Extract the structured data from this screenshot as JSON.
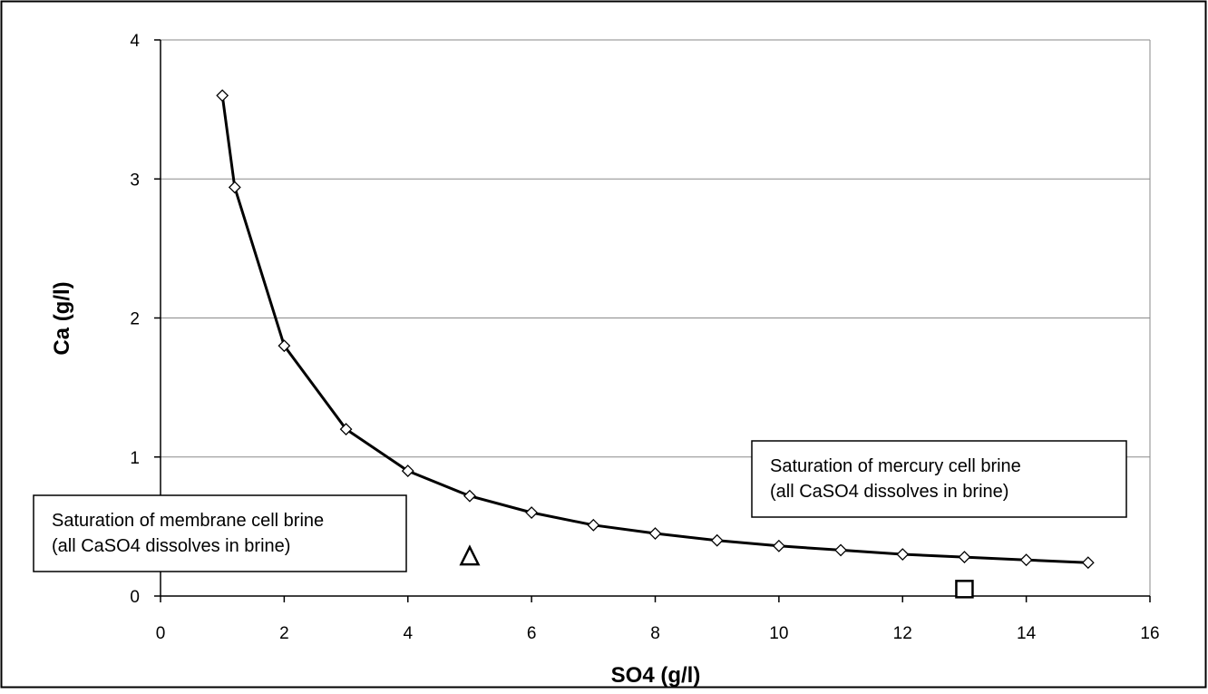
{
  "chart_data": {
    "type": "line",
    "xlabel": "SO4 (g/l)",
    "ylabel": "Ca (g/l)",
    "xlim": [
      0,
      16
    ],
    "ylim": [
      0,
      4
    ],
    "x_ticks": [
      0,
      2,
      4,
      6,
      8,
      10,
      12,
      14,
      16
    ],
    "y_ticks": [
      0,
      1,
      2,
      3,
      4
    ],
    "x_tick_labels": [
      "0",
      "2",
      "4",
      "6",
      "8",
      "10",
      "12",
      "14",
      "16"
    ],
    "y_tick_labels": [
      "0",
      "1",
      "2",
      "3",
      "4"
    ],
    "grid": "horizontal",
    "legend": "none",
    "series": [
      {
        "marker": "diamond",
        "color": "#000000",
        "x": [
          1,
          1.2,
          2,
          3,
          4,
          5,
          6,
          7,
          8,
          9,
          10,
          11,
          12,
          13,
          14,
          15
        ],
        "y": [
          3.6,
          2.94,
          1.8,
          1.2,
          0.9,
          0.72,
          0.6,
          0.51,
          0.45,
          0.4,
          0.36,
          0.33,
          0.3,
          0.28,
          0.26,
          0.24
        ]
      }
    ],
    "points": [
      {
        "marker": "triangle",
        "x": 5,
        "y": 0.28
      },
      {
        "marker": "square",
        "x": 13,
        "y": 0.05
      }
    ],
    "annotations": [
      {
        "id": "membrane",
        "lines": [
          "Saturation of membrane cell brine",
          "(all CaSO4 dissolves in brine)"
        ]
      },
      {
        "id": "mercury",
        "lines": [
          "Saturation of mercury cell brine",
          "(all CaSO4 dissolves in brine)"
        ]
      }
    ]
  }
}
